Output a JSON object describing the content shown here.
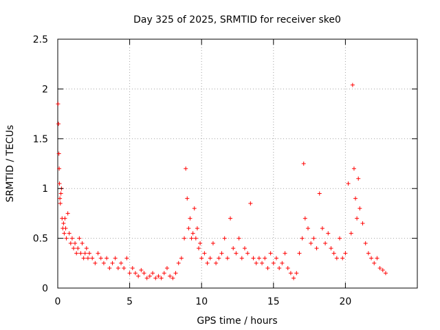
{
  "chart_data": {
    "type": "scatter",
    "title": "Day 325 of 2025, SRMTID for receiver ske0",
    "xlabel": "GPS time / hours",
    "ylabel": "SRMTID / TECUs",
    "xlim": [
      0,
      25
    ],
    "ylim": [
      0,
      2.5
    ],
    "xticks": [
      0,
      5,
      10,
      15,
      20
    ],
    "xtick_labels": [
      "0",
      "5",
      "10",
      "15",
      "20"
    ],
    "yticks": [
      0,
      0.5,
      1,
      1.5,
      2,
      2.5
    ],
    "ytick_labels": [
      "0",
      "0.5",
      "1",
      "1.5",
      "2",
      "2.5"
    ],
    "grid": true,
    "marker": "+",
    "color": "#ff0000",
    "series": [
      {
        "name": "SRMTID",
        "x": [
          0.02,
          0.05,
          0.08,
          0.1,
          0.12,
          0.15,
          0.18,
          0.22,
          0.26,
          0.3,
          0.35,
          0.4,
          0.45,
          0.5,
          0.55,
          0.6,
          0.7,
          0.8,
          0.9,
          1.0,
          1.1,
          1.2,
          1.3,
          1.4,
          1.5,
          1.6,
          1.7,
          1.8,
          1.9,
          2.0,
          2.1,
          2.2,
          2.4,
          2.6,
          2.8,
          3.0,
          3.2,
          3.4,
          3.6,
          3.8,
          4.0,
          4.2,
          4.4,
          4.6,
          4.8,
          5.0,
          5.2,
          5.4,
          5.6,
          5.8,
          6.0,
          6.2,
          6.4,
          6.6,
          6.8,
          7.0,
          7.2,
          7.4,
          7.6,
          7.8,
          8.0,
          8.2,
          8.4,
          8.6,
          8.8,
          8.9,
          9.0,
          9.1,
          9.2,
          9.3,
          9.4,
          9.5,
          9.6,
          9.7,
          9.8,
          9.9,
          10.0,
          10.2,
          10.4,
          10.6,
          10.8,
          11.0,
          11.2,
          11.4,
          11.6,
          11.8,
          12.0,
          12.2,
          12.4,
          12.6,
          12.8,
          13.0,
          13.2,
          13.4,
          13.6,
          13.8,
          14.0,
          14.2,
          14.4,
          14.6,
          14.8,
          15.0,
          15.2,
          15.4,
          15.6,
          15.8,
          16.0,
          16.2,
          16.4,
          16.6,
          16.8,
          17.0,
          17.1,
          17.2,
          17.4,
          17.6,
          17.8,
          18.0,
          18.2,
          18.4,
          18.6,
          18.8,
          19.0,
          19.2,
          19.4,
          19.6,
          19.8,
          20.0,
          20.2,
          20.4,
          20.5,
          20.6,
          20.7,
          20.8,
          20.9,
          21.0,
          21.2,
          21.4,
          21.6,
          21.8,
          22.0,
          22.2,
          22.4,
          22.6,
          22.8
        ],
        "y": [
          1.85,
          1.65,
          1.35,
          1.2,
          1.05,
          0.9,
          0.85,
          0.95,
          1.0,
          0.7,
          0.6,
          0.65,
          0.55,
          0.7,
          0.6,
          0.5,
          0.75,
          0.55,
          0.45,
          0.5,
          0.4,
          0.45,
          0.35,
          0.4,
          0.5,
          0.35,
          0.45,
          0.3,
          0.35,
          0.4,
          0.3,
          0.35,
          0.3,
          0.25,
          0.35,
          0.3,
          0.25,
          0.3,
          0.2,
          0.25,
          0.3,
          0.2,
          0.25,
          0.2,
          0.3,
          0.15,
          0.2,
          0.15,
          0.12,
          0.18,
          0.15,
          0.1,
          0.12,
          0.15,
          0.1,
          0.12,
          0.1,
          0.15,
          0.2,
          0.12,
          0.1,
          0.15,
          0.25,
          0.3,
          0.5,
          1.2,
          0.9,
          0.6,
          0.7,
          0.5,
          0.55,
          0.8,
          0.5,
          0.6,
          0.4,
          0.45,
          0.3,
          0.35,
          0.25,
          0.3,
          0.45,
          0.25,
          0.3,
          0.35,
          0.5,
          0.3,
          0.7,
          0.4,
          0.35,
          0.5,
          0.3,
          0.4,
          0.35,
          0.85,
          0.3,
          0.25,
          0.3,
          0.25,
          0.3,
          0.2,
          0.35,
          0.25,
          0.3,
          0.2,
          0.25,
          0.35,
          0.2,
          0.15,
          0.1,
          0.15,
          0.35,
          0.5,
          1.25,
          0.7,
          0.6,
          0.45,
          0.5,
          0.4,
          0.95,
          0.6,
          0.45,
          0.55,
          0.4,
          0.35,
          0.3,
          0.5,
          0.3,
          0.35,
          1.05,
          0.55,
          2.04,
          1.2,
          0.9,
          0.7,
          1.1,
          0.8,
          0.65,
          0.45,
          0.35,
          0.3,
          0.25,
          0.3,
          0.2,
          0.18,
          0.15
        ]
      }
    ]
  }
}
